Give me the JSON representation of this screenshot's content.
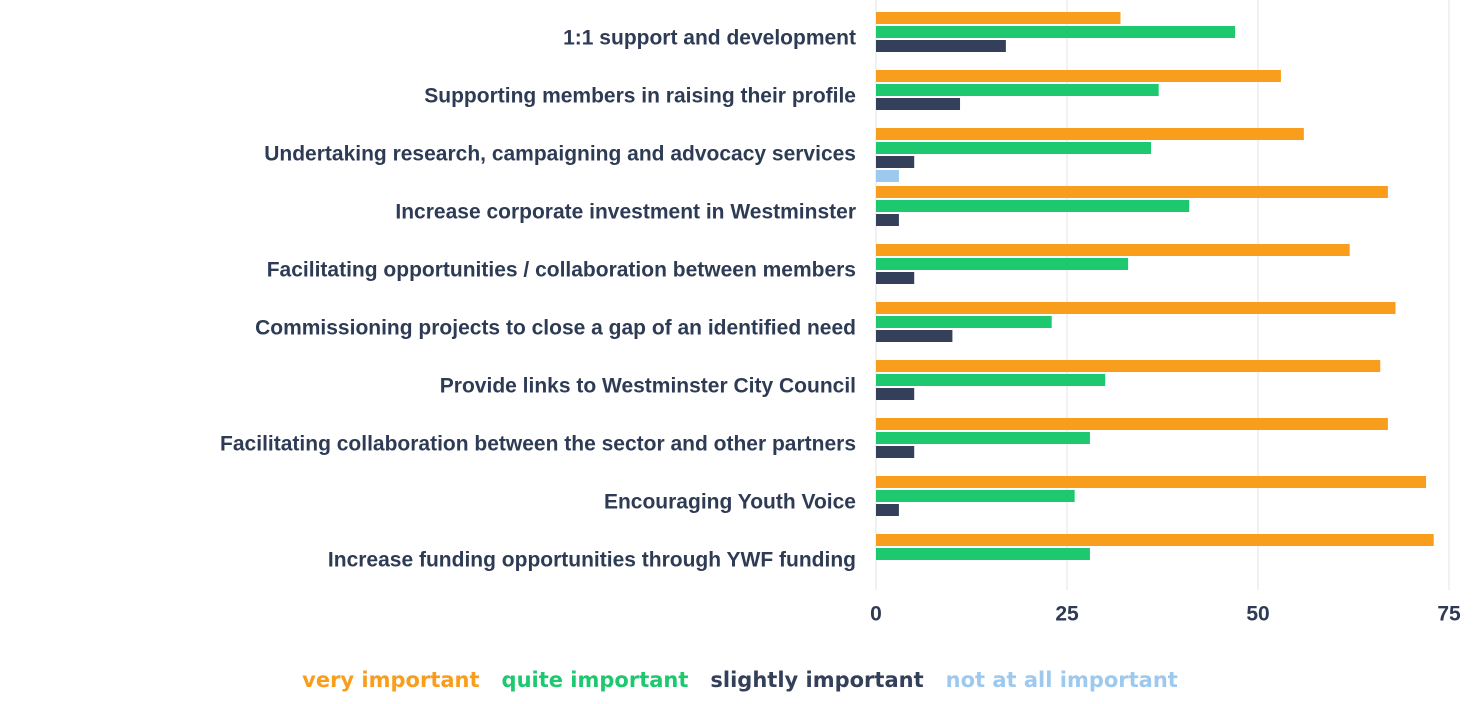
{
  "chart_data": {
    "type": "bar",
    "orientation": "horizontal",
    "categories": [
      "1:1 support and development",
      "Supporting members in raising their profile",
      "Undertaking research, campaigning and advocacy services",
      "Increase corporate investment in Westminster",
      "Facilitating opportunities / collaboration between members",
      "Commissioning projects to close a gap of an identified need",
      "Provide links to Westminster City Council",
      "Facilitating collaboration between the sector and other partners",
      "Encouraging Youth Voice",
      "Increase funding opportunities through YWF funding"
    ],
    "series": [
      {
        "name": "very important",
        "color": "#f99d1c",
        "values": [
          32,
          53,
          56,
          67,
          62,
          68,
          66,
          67,
          72,
          73
        ]
      },
      {
        "name": "quite important",
        "color": "#1dc86f",
        "values": [
          47,
          37,
          36,
          41,
          33,
          23,
          30,
          28,
          26,
          28
        ]
      },
      {
        "name": "slightly important",
        "color": "#34405a",
        "values": [
          17,
          11,
          5,
          3,
          5,
          10,
          5,
          5,
          3,
          0
        ]
      },
      {
        "name": "not at all important",
        "color": "#9ec9ee",
        "values": [
          0,
          0,
          3,
          0,
          0,
          0,
          0,
          0,
          0,
          0
        ]
      }
    ],
    "xlim": [
      0,
      77
    ],
    "xticks": [
      0,
      25,
      50,
      75
    ],
    "grid": true,
    "legend": "bottom"
  }
}
